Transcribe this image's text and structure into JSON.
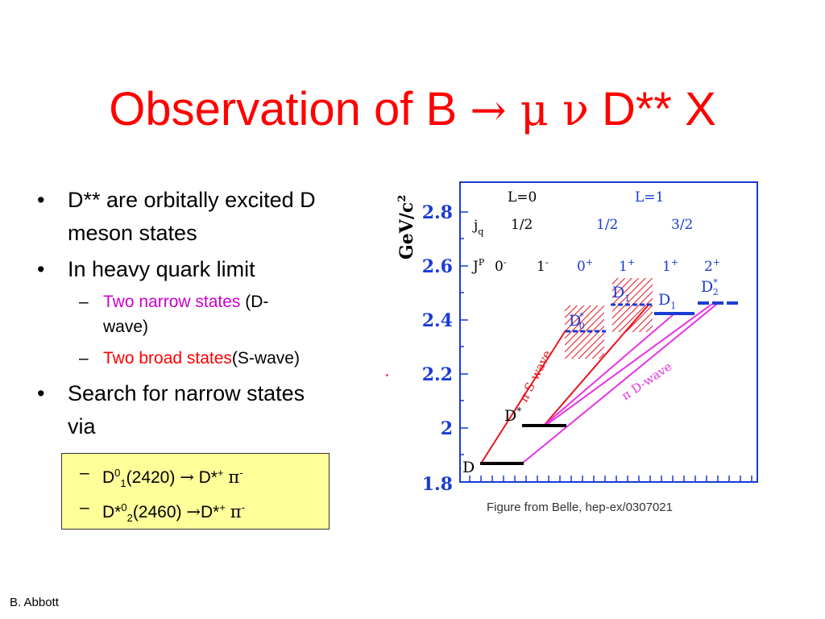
{
  "title": {
    "prefix": "Observation of B ",
    "arrow": "→",
    "mu": " μ ",
    "nu": "ν",
    "suffix": " D** X",
    "color": "#ff0000"
  },
  "bullets": {
    "b1_line1": "D** are orbitally excited D",
    "b1_line2": "meson states",
    "b2": "In heavy quark limit",
    "sub1_colored": "Two narrow states",
    "sub1_rest_a": " (D-",
    "sub1_rest_b": "wave)",
    "sub2_colored": "Two broad states",
    "sub2_rest": "(S-wave)",
    "b3_line1": "Search for narrow states",
    "b3_line2": "via"
  },
  "box": {
    "row1": {
      "a": "D",
      "sup": "0",
      "sub": "1",
      "b": "(2420) ",
      "arrow": "→",
      "c": " D*",
      "sup2": "+",
      "d": " ",
      "pi": "π",
      "sup3": "-"
    },
    "row2": {
      "a": "D*",
      "sup": "0",
      "sub": "2",
      "b": "(2460) ",
      "arrow": "→",
      "c": "D*",
      "sup2": "+",
      "d": " ",
      "pi": "π",
      "sup3": "-"
    },
    "background": "#ffff99"
  },
  "figure": {
    "yaxis_label": "GeV/c",
    "yaxis_label_sup": "2",
    "yticks": [
      "2.8",
      "2.6",
      "2.4",
      "2.2",
      "2",
      "1.8"
    ],
    "header_L0": "L=0",
    "header_L1": "L=1",
    "jq_label": "j",
    "jq_sub": "q",
    "jq_values": [
      "1/2",
      "1/2",
      "3/2"
    ],
    "jp_label": "J",
    "jp_sup": "P",
    "jp_values": [
      {
        "n": "0",
        "s": "-"
      },
      {
        "n": "1",
        "s": "-"
      },
      {
        "n": "0",
        "s": "+"
      },
      {
        "n": "1",
        "s": "+"
      },
      {
        "n": "1",
        "s": "+"
      },
      {
        "n": "2",
        "s": "+"
      }
    ],
    "state_D": "D",
    "state_Dstar": "D",
    "state_Dstar_sup": "*",
    "state_D0star": "D",
    "state_D0star_sup": "*",
    "state_D0star_sub": "0",
    "state_D1broad": "D",
    "state_D1broad_sub": "1",
    "state_D1": "D",
    "state_D1_sub": "1",
    "state_D2": "D",
    "state_D2_sup": "*",
    "state_D2_sub": "2",
    "s_wave_label": "π S-wave",
    "d_wave_label": "π D-wave",
    "colors": {
      "blue": "#1a3bd6",
      "red": "#e8141e",
      "magenta": "#e633e6",
      "black": "#000000"
    }
  },
  "caption": "Figure from Belle, hep-ex/0307021",
  "footer": "B. Abbott"
}
